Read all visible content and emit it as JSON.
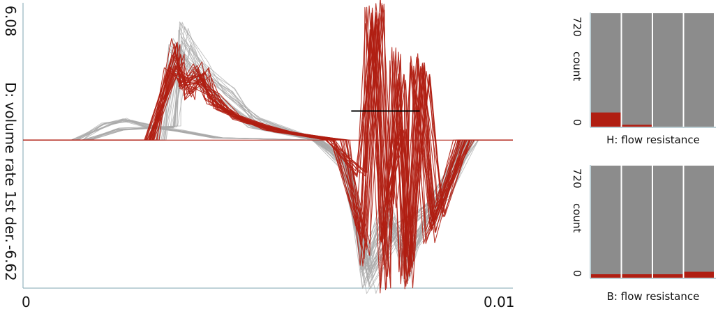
{
  "colors": {
    "context": "#a9a9a9",
    "selection": "#b01e12",
    "bar_bg": "#8c8c8c",
    "brush": "#000000",
    "axis": "#7fa6b0"
  },
  "chart_data": [
    {
      "type": "line",
      "ylabel": "D: volume rate 1st der.",
      "ymax_label": "6.08",
      "ymin_label": "-6.62",
      "xmin_label": "0",
      "xmax_label": "0.01",
      "ylim": [
        -6.62,
        6.08
      ],
      "xlim": [
        0,
        0.01
      ],
      "brush": {
        "y": 1.3,
        "x": [
          0.0067,
          0.0081
        ]
      },
      "series": [
        {
          "role": "context",
          "x": [
            0,
            0.0011,
            0.0017,
            0.0021,
            0.0026,
            0.0032,
            0.004,
            0.006,
            0.0066,
            0.007,
            0.0074,
            0.0078,
            0.0084,
            0.009,
            0.01
          ],
          "y": [
            0,
            0,
            0.7,
            0.9,
            0.6,
            0.4,
            0.1,
            0,
            -1.0,
            -5.4,
            -3.0,
            -5.1,
            -3.2,
            0,
            0
          ]
        },
        {
          "role": "context",
          "x": [
            0,
            0.0013,
            0.002,
            0.0031,
            0.0033,
            0.0037,
            0.0042,
            0.0048,
            0.006,
            0.0066,
            0.0071,
            0.0077,
            0.0086,
            0.0092,
            0.01
          ],
          "y": [
            0,
            0,
            0.5,
            0.6,
            4.8,
            3.2,
            2.1,
            0.9,
            0,
            -0.7,
            -6.3,
            -4.0,
            -2.4,
            0,
            0
          ]
        },
        {
          "role": "context",
          "x": [
            0,
            0.0028,
            0.0031,
            0.0035,
            0.0041,
            0.0047,
            0.006,
            0.0066,
            0.007,
            0.0075,
            0.0079,
            0.0084,
            0.0091,
            0.01
          ],
          "y": [
            0,
            0,
            4.2,
            2.9,
            1.6,
            0.6,
            0,
            -1.2,
            -6.1,
            -3.5,
            -5.9,
            -2.8,
            0,
            0
          ]
        },
        {
          "role": "selected",
          "x": [
            0,
            0.0026,
            0.0031,
            0.0033,
            0.0036,
            0.0038,
            0.0043,
            0.005,
            0.0063,
            0.0069,
            0.0071,
            0.0074,
            0.0076,
            0.0078,
            0.008,
            0.0083,
            0.0089,
            0.01
          ],
          "y": [
            0,
            0,
            4.1,
            2.4,
            3.2,
            1.8,
            1.1,
            0.5,
            0,
            -1.5,
            5.6,
            -6.2,
            3.8,
            -6.0,
            3.5,
            -4.2,
            0,
            0
          ]
        },
        {
          "role": "selected",
          "x": [
            0,
            0.0026,
            0.0032,
            0.0034,
            0.0037,
            0.004,
            0.0046,
            0.0055,
            0.0066,
            0.007,
            0.0073,
            0.0075,
            0.0077,
            0.0079,
            0.0082,
            0.0085,
            0.0091,
            0.01
          ],
          "y": [
            0,
            0,
            3.6,
            2.0,
            3.0,
            1.5,
            0.8,
            0.3,
            0,
            -5.2,
            6.0,
            -3.0,
            0.5,
            -6.1,
            3.0,
            -3.2,
            0,
            0
          ]
        },
        {
          "role": "selected",
          "x": [
            0,
            0.0027,
            0.003,
            0.0033,
            0.0035,
            0.0039,
            0.0044,
            0.0052,
            0.0064,
            0.0069,
            0.0072,
            0.0074,
            0.0077,
            0.0079,
            0.0081,
            0.0084,
            0.009,
            0.01
          ],
          "y": [
            0,
            0,
            3.2,
            2.6,
            2.7,
            1.9,
            1.0,
            0.4,
            0,
            -4.0,
            5.2,
            -4.5,
            2.8,
            -5.4,
            3.3,
            -3.8,
            0,
            0
          ]
        }
      ]
    },
    {
      "type": "bar",
      "xlabel": "H: flow resistance",
      "ylabel": "count",
      "ymax_label": "720",
      "ymin_label": "0",
      "ylim": [
        0,
        720
      ],
      "bins": 4,
      "total": [
        720,
        720,
        720,
        720
      ],
      "selected": [
        90,
        12,
        0,
        0
      ]
    },
    {
      "type": "bar",
      "xlabel": "B: flow resistance",
      "ylabel": "count",
      "ymax_label": "720",
      "ymin_label": "0",
      "ylim": [
        0,
        720
      ],
      "bins": 4,
      "total": [
        720,
        720,
        720,
        720
      ],
      "selected": [
        22,
        22,
        22,
        38
      ]
    }
  ]
}
